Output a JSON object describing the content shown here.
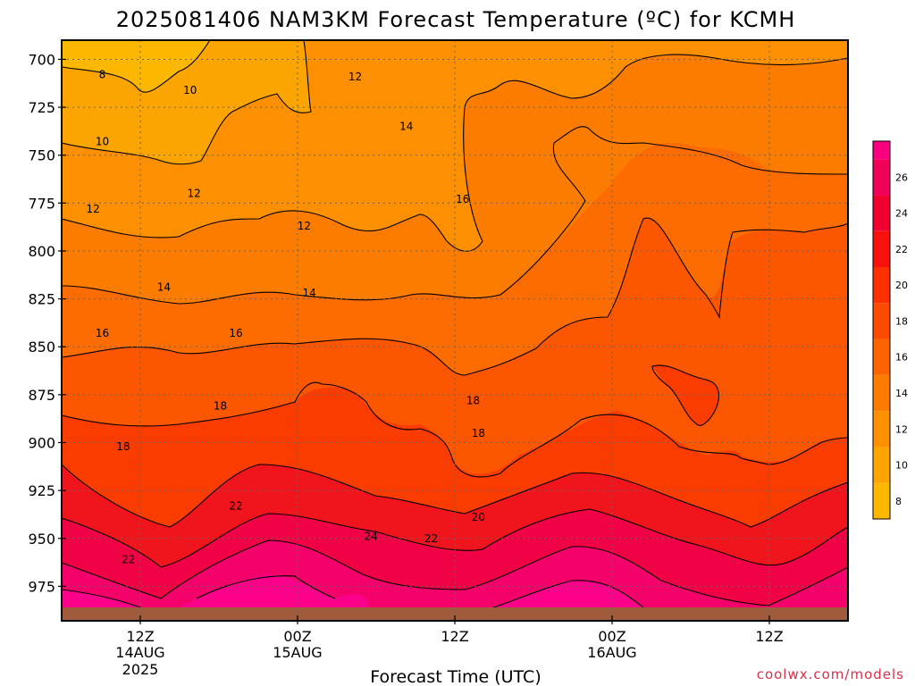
{
  "chart_data": {
    "type": "heatmap",
    "title": "2025081406 NAM3KM Forecast Temperature (ºC) for KCMH",
    "xlabel": "Forecast Time (UTC)",
    "ylabel": "",
    "x_ticks": [
      {
        "label": "12Z",
        "sub": "14AUG",
        "sub2": "2025",
        "hour": 6
      },
      {
        "label": "00Z",
        "sub": "15AUG",
        "sub2": "",
        "hour": 18
      },
      {
        "label": "12Z",
        "sub": "",
        "sub2": "",
        "hour": 30
      },
      {
        "label": "00Z",
        "sub": "16AUG",
        "sub2": "",
        "hour": 42
      },
      {
        "label": "12Z",
        "sub": "",
        "sub2": "",
        "hour": 54
      }
    ],
    "xlim": [
      0,
      60
    ],
    "y_ticks": [
      700,
      725,
      750,
      775,
      800,
      825,
      850,
      875,
      900,
      925,
      950,
      975
    ],
    "ylim": [
      690,
      993
    ],
    "y_units": "hPa",
    "grid": true,
    "colorbar": {
      "labels": [
        "8",
        "10",
        "12",
        "14",
        "16",
        "18",
        "20",
        "22",
        "24",
        "26"
      ],
      "levels": [
        7,
        9,
        11,
        13,
        15,
        17,
        19,
        21,
        23,
        25,
        27,
        28
      ],
      "colors": [
        "#fcb800",
        "#fca400",
        "#fc9000",
        "#fc7c00",
        "#fc6400",
        "#fc4a00",
        "#fc3000",
        "#f8100c",
        "#f00030",
        "#f00058",
        "#f80080"
      ],
      "placement": "right"
    },
    "contour_labels": [
      {
        "text": "8",
        "t": 3.1,
        "p": 708
      },
      {
        "text": "10",
        "t": 9.8,
        "p": 716
      },
      {
        "text": "10",
        "t": 3.1,
        "p": 743
      },
      {
        "text": "12",
        "t": 22.4,
        "p": 709
      },
      {
        "text": "14",
        "t": 26.3,
        "p": 735
      },
      {
        "text": "12",
        "t": 10.1,
        "p": 770
      },
      {
        "text": "12",
        "t": 2.4,
        "p": 778
      },
      {
        "text": "12",
        "t": 18.5,
        "p": 787
      },
      {
        "text": "16",
        "t": 30.6,
        "p": 773
      },
      {
        "text": "14",
        "t": 7.8,
        "p": 819
      },
      {
        "text": "14",
        "t": 18.9,
        "p": 822
      },
      {
        "text": "16",
        "t": 3.1,
        "p": 843
      },
      {
        "text": "16",
        "t": 13.3,
        "p": 843
      },
      {
        "text": "18",
        "t": 12.1,
        "p": 881
      },
      {
        "text": "18",
        "t": 4.7,
        "p": 902
      },
      {
        "text": "18",
        "t": 31.4,
        "p": 878
      },
      {
        "text": "18",
        "t": 31.8,
        "p": 895
      },
      {
        "text": "22",
        "t": 13.3,
        "p": 933
      },
      {
        "text": "24",
        "t": 23.6,
        "p": 949
      },
      {
        "text": "22",
        "t": 28.2,
        "p": 950
      },
      {
        "text": "20",
        "t": 31.8,
        "p": 939
      },
      {
        "text": "22",
        "t": 5.1,
        "p": 961
      }
    ],
    "ground_color": "#a05a3c",
    "surface_pressure_hPa": 986
  },
  "credit": "coolwx.com/models"
}
